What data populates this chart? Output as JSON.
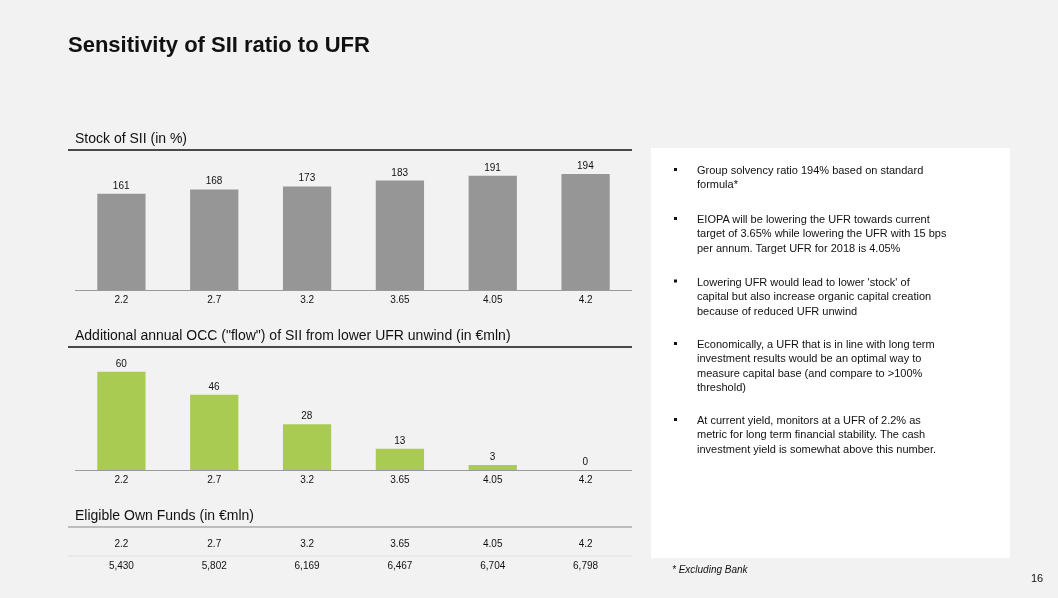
{
  "chart_data": [
    {
      "type": "bar",
      "title": "Stock of SII (in %)",
      "categories": [
        "2.2",
        "2.7",
        "3.2",
        "3.65",
        "4.05",
        "4.2"
      ],
      "values": [
        161,
        168,
        173,
        183,
        191,
        194
      ],
      "color": "#969696",
      "data_labels": true
    },
    {
      "type": "bar",
      "title": "Additional annual OCC (\"flow\") of SII from lower UFR unwind (in €mln)",
      "categories": [
        "2.2",
        "2.7",
        "3.2",
        "3.65",
        "4.05",
        "4.2"
      ],
      "values": [
        60,
        46,
        28,
        13,
        3,
        0
      ],
      "color": "#a9cb52",
      "data_labels": true
    },
    {
      "type": "other",
      "title": "Eligible Own Funds (in €mln)",
      "categories": [
        "2.2",
        "2.7",
        "3.2",
        "3.65",
        "4.05",
        "4.2"
      ],
      "values": [
        5430,
        5802,
        6169,
        6467,
        6704,
        6798
      ],
      "value_labels": [
        "5,430",
        "5,802",
        "6,169",
        "6,467",
        "6,704",
        "6,798"
      ]
    },
    {
      "type": "other",
      "title": "Sensitivity of SII ratio to UFR",
      "annotations": [
        "Group solvency ratio 194% based on standard formula*",
        "EIOPA will be lowering the UFR towards current target of 3.65% while lowering the UFR with 15 bps per annum. Target UFR for 2018 is 4.05%",
        "Lowering UFR would lead to lower 'stock' of capital but also increase organic capital creation because of reduced UFR unwind",
        "Economically, a UFR that is in line with long term investment results would be an optimal way to measure capital base (and compare to >100% threshold)",
        "At current yield, monitors at a UFR of 2.2% as metric for long term financial stability. The cash investment yield is somewhat above this number.",
        "* Excluding Bank",
        "16"
      ]
    }
  ]
}
